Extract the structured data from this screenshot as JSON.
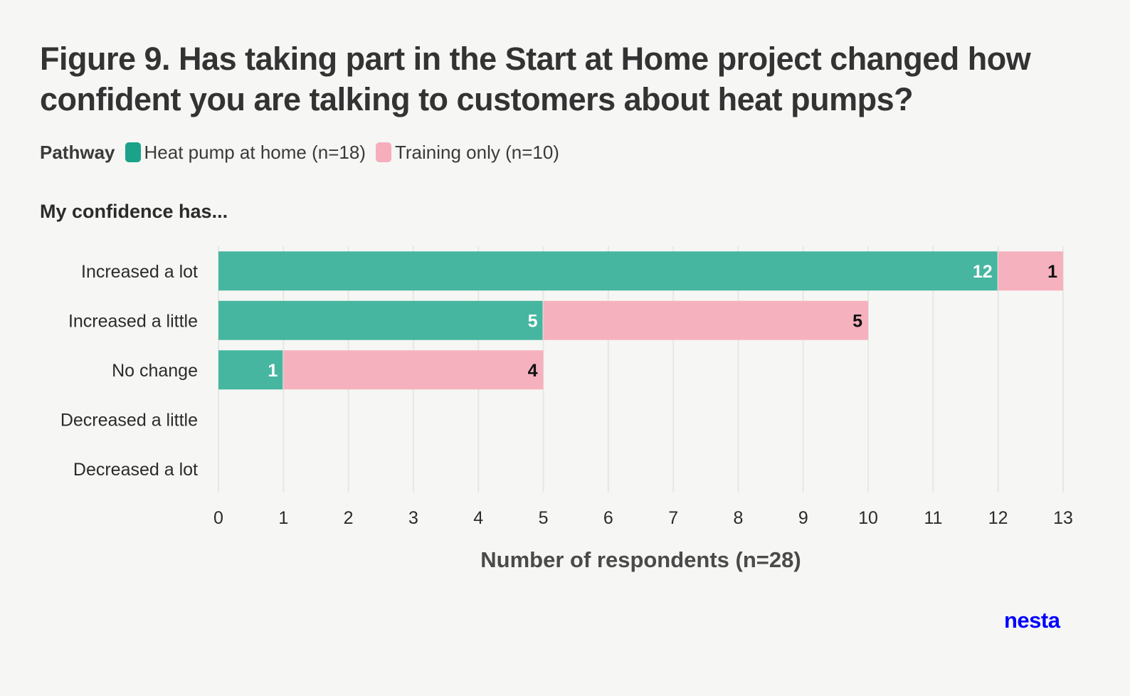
{
  "title": "Figure 9. Has taking part in the Start at Home project changed how confident you are talking to customers about heat pumps?",
  "legend": {
    "heading": "Pathway",
    "items": [
      {
        "label": "Heat pump at home (n=18)",
        "color": "#1aa389"
      },
      {
        "label": "Training only (n=10)",
        "color": "#f6aebd"
      }
    ]
  },
  "subtitle": "My confidence has...",
  "logo": "nesta",
  "chart_data": {
    "type": "bar",
    "orientation": "horizontal",
    "stacked": true,
    "categories": [
      "Increased a lot",
      "Increased a little",
      "No change",
      "Decreased a little",
      "Decreased a lot"
    ],
    "series": [
      {
        "name": "Heat pump at home (n=18)",
        "values": [
          12,
          5,
          1,
          0,
          0
        ],
        "color": "#46b6a0",
        "label_color": "#ffffff"
      },
      {
        "name": "Training only (n=10)",
        "values": [
          1,
          5,
          4,
          0,
          0
        ],
        "color": "#f6b1bf",
        "label_color": "#111111"
      }
    ],
    "xlabel": "Number of respondents (n=28)",
    "xlim": [
      0,
      13
    ],
    "xticks": [
      0,
      1,
      2,
      3,
      4,
      5,
      6,
      7,
      8,
      9,
      10,
      11,
      12,
      13
    ],
    "grid": true,
    "legend_position": "top-left"
  }
}
